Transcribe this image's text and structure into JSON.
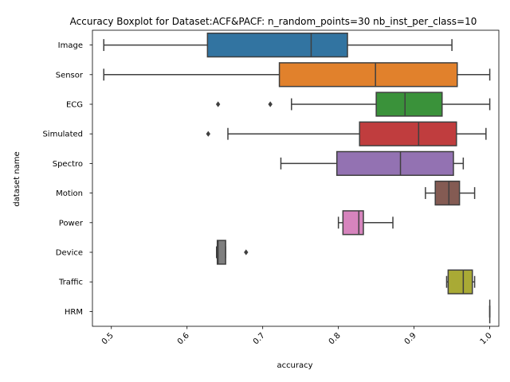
{
  "chart_data": {
    "type": "boxplot",
    "orientation": "horizontal",
    "title": "Accuracy Boxplot for Dataset:ACF&PACF: n_random_points=30 nb_inst_per_class=10",
    "xlabel": "accuracy",
    "ylabel": "dataset name",
    "xlim": [
      0.475,
      1.012
    ],
    "xticks": [
      0.5,
      0.6,
      0.7,
      0.8,
      0.9,
      1.0
    ],
    "xtick_labels": [
      "0.5",
      "0.6",
      "0.7",
      "0.8",
      "0.9",
      "1.0"
    ],
    "grid": false,
    "categories": [
      "Image",
      "Sensor",
      "ECG",
      "Simulated",
      "Spectro",
      "Motion",
      "Power",
      "Device",
      "Traffic",
      "HRM"
    ],
    "boxes": [
      {
        "name": "Image",
        "whisker_low": 0.49,
        "q1": 0.627,
        "median": 0.764,
        "q3": 0.812,
        "whisker_high": 0.95,
        "outliers": [],
        "color": "#3274a1"
      },
      {
        "name": "Sensor",
        "whisker_low": 0.49,
        "q1": 0.722,
        "median": 0.849,
        "q3": 0.957,
        "whisker_high": 1.0,
        "outliers": [],
        "color": "#e1812c"
      },
      {
        "name": "ECG",
        "whisker_low": 0.738,
        "q1": 0.85,
        "median": 0.888,
        "q3": 0.937,
        "whisker_high": 1.0,
        "outliers": [
          0.641,
          0.71
        ],
        "color": "#3a923a"
      },
      {
        "name": "Simulated",
        "whisker_low": 0.654,
        "q1": 0.828,
        "median": 0.906,
        "q3": 0.956,
        "whisker_high": 0.995,
        "outliers": [
          0.628
        ],
        "color": "#c03d3e"
      },
      {
        "name": "Spectro",
        "whisker_low": 0.724,
        "q1": 0.798,
        "median": 0.882,
        "q3": 0.952,
        "whisker_high": 0.965,
        "outliers": [],
        "color": "#9372b2"
      },
      {
        "name": "Motion",
        "whisker_low": 0.915,
        "q1": 0.928,
        "median": 0.946,
        "q3": 0.96,
        "whisker_high": 0.98,
        "outliers": [],
        "color": "#845b53"
      },
      {
        "name": "Power",
        "whisker_low": 0.8,
        "q1": 0.806,
        "median": 0.827,
        "q3": 0.833,
        "whisker_high": 0.872,
        "outliers": [],
        "color": "#d684bd"
      },
      {
        "name": "Device",
        "whisker_low": 0.639,
        "q1": 0.64,
        "median": 0.641,
        "q3": 0.651,
        "whisker_high": 0.651,
        "outliers": [
          0.678
        ],
        "color": "#7f7f7f"
      },
      {
        "name": "Traffic",
        "whisker_low": 0.943,
        "q1": 0.945,
        "median": 0.965,
        "q3": 0.977,
        "whisker_high": 0.98,
        "outliers": [],
        "color": "#a9aa35"
      },
      {
        "name": "HRM",
        "whisker_low": 1.0,
        "q1": 1.0,
        "median": 1.0,
        "q3": 1.0,
        "whisker_high": 1.0,
        "outliers": [],
        "color": "#2e9fb5"
      }
    ]
  }
}
